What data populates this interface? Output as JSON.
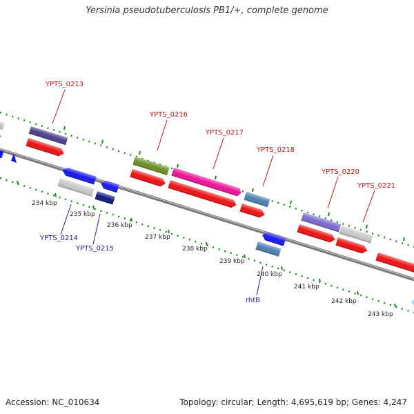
{
  "header": {
    "title": "Yersinia pseudotuberculosis PB1/+, complete genome"
  },
  "footer": {
    "accession": "Accession: NC_010634",
    "stats": "Topology: circular; Length: 4,695,619 bp; Genes: 4,247"
  },
  "tick_labels": [
    "234 kbp",
    "235 kbp",
    "236 kbp",
    "237 kbp",
    "238 kbp",
    "239 kbp",
    "240 kbp",
    "241 kbp",
    "242 kbp",
    "243 kbp"
  ],
  "gene_labels": {
    "ypts_0213": "YPTS_0213",
    "ypts_0214": "YPTS_0214",
    "ypts_0215": "YPTS_0215",
    "ypts_0216": "YPTS_0216",
    "ypts_0217": "YPTS_0217",
    "ypts_0218": "YPTS_0218",
    "ypts_0220": "YPTS_0220",
    "ypts_0221": "YPTS_0221",
    "rhtb": "rhtB"
  },
  "colors": {
    "cds": "#ee1111",
    "backbone": "#888888",
    "gc_dots": "#1a8a1a",
    "label_forward": "#cc1111",
    "label_reverse": "#1a1aa6",
    "gene_purple": "#4b3f8c",
    "gene_olive": "#6b8e23",
    "gene_pink": "#ee1199",
    "gene_steel": "#4a7fb0",
    "gene_lavender": "#7a6ad0",
    "gene_gray": "#c8c8c8",
    "gene_blue": "#1515ee",
    "gene_navy": "#101a80"
  }
}
